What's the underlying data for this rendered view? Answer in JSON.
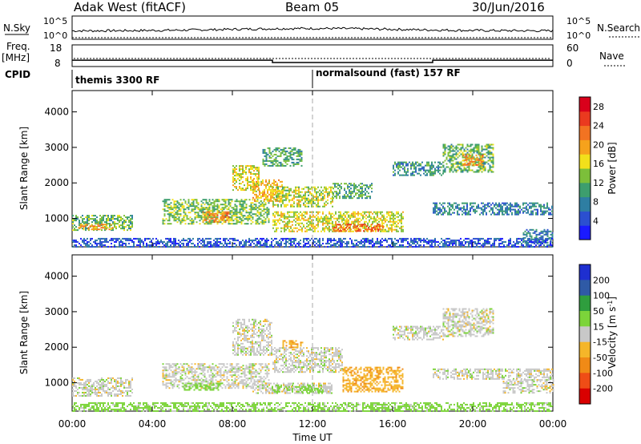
{
  "header": {
    "station": "Adak West (fitACF)",
    "beam": "Beam 05",
    "date": "30/Jun/2016"
  },
  "time_axis": {
    "title": "Time UT",
    "ticks": [
      "00:00",
      "04:00",
      "08:00",
      "12:00",
      "16:00",
      "20:00",
      "00:00"
    ],
    "range_hours": [
      0,
      24
    ]
  },
  "nsky_panel": {
    "left_label": "N.Sky",
    "right_label": "N.Search",
    "left_ticks": [
      "10^5",
      "10^0"
    ],
    "right_ticks": [
      "10^5",
      "10^0"
    ]
  },
  "freq_panel": {
    "left_label_1": "Freq.",
    "left_label_2": "[MHz]",
    "right_label": "Nave",
    "left_ticks": [
      "18",
      "8"
    ],
    "right_ticks": [
      "60",
      "0"
    ],
    "freq_segments": [
      {
        "start": 0,
        "end": 10,
        "mhz": 11.6
      },
      {
        "start": 10,
        "end": 18,
        "mhz": 10.3
      },
      {
        "start": 18,
        "end": 24,
        "mhz": 11.6
      }
    ]
  },
  "cpid": {
    "label": "CPID",
    "divider_hour": 12,
    "programs": [
      "themis 3300 RF",
      "normalsound (fast) 157 RF"
    ]
  },
  "chart_data": [
    {
      "type": "heatmap",
      "title": "",
      "xlabel": "Time UT",
      "ylabel": "Slant Range [km]",
      "ylim": [
        200,
        4600
      ],
      "y_ticks": [
        "1000",
        "2000",
        "3000",
        "4000"
      ],
      "colorbar": {
        "title": "Power [dB]",
        "ticks": [
          "4",
          "8",
          "12",
          "16",
          "20",
          "24",
          "28"
        ],
        "range": [
          0,
          30
        ]
      },
      "regions": [
        {
          "t0": 0.0,
          "t1": 3.0,
          "r0": 650,
          "r1": 1100,
          "level": 12
        },
        {
          "t0": 0.3,
          "t1": 2.0,
          "r0": 700,
          "r1": 850,
          "level": 20
        },
        {
          "t0": 4.5,
          "t1": 9.8,
          "r0": 850,
          "r1": 1550,
          "level": 13
        },
        {
          "t0": 6.5,
          "t1": 7.8,
          "r0": 900,
          "r1": 1200,
          "level": 21
        },
        {
          "t0": 8.0,
          "t1": 9.3,
          "r0": 1800,
          "r1": 2500,
          "level": 16
        },
        {
          "t0": 9.0,
          "t1": 10.5,
          "r0": 1500,
          "r1": 2100,
          "level": 18
        },
        {
          "t0": 10.0,
          "t1": 16.5,
          "r0": 650,
          "r1": 1200,
          "level": 16
        },
        {
          "t0": 13.0,
          "t1": 15.5,
          "r0": 650,
          "r1": 850,
          "level": 23
        },
        {
          "t0": 10.0,
          "t1": 13.0,
          "r0": 1350,
          "r1": 1900,
          "level": 15
        },
        {
          "t0": 13.0,
          "t1": 15.0,
          "r0": 1550,
          "r1": 2000,
          "level": 11
        },
        {
          "t0": 9.5,
          "t1": 11.5,
          "r0": 2500,
          "r1": 3000,
          "level": 11
        },
        {
          "t0": 16.0,
          "t1": 18.5,
          "r0": 2200,
          "r1": 2600,
          "level": 9
        },
        {
          "t0": 18.5,
          "t1": 21.0,
          "r0": 2300,
          "r1": 3100,
          "level": 12
        },
        {
          "t0": 19.5,
          "t1": 20.5,
          "r0": 2500,
          "r1": 2800,
          "level": 21
        },
        {
          "t0": 18.0,
          "t1": 24.0,
          "r0": 1100,
          "r1": 1450,
          "level": 8
        },
        {
          "t0": 22.5,
          "t1": 24.0,
          "r0": 300,
          "r1": 700,
          "level": 8
        },
        {
          "t0": 0.0,
          "t1": 24.0,
          "r0": 220,
          "r1": 450,
          "level": 5
        }
      ]
    },
    {
      "type": "heatmap",
      "title": "",
      "xlabel": "Time UT",
      "ylabel": "Slant Range [km]",
      "ylim": [
        200,
        4600
      ],
      "y_ticks": [
        "1000",
        "2000",
        "3000",
        "4000"
      ],
      "colorbar": {
        "title": "Velocity [m s^-1]",
        "ticks": [
          "200",
          "100",
          "50",
          "15",
          "-15",
          "-50",
          "-100",
          "-200"
        ],
        "range": [
          -250,
          250
        ]
      },
      "regions": [
        {
          "t0": 0.0,
          "t1": 3.0,
          "r0": 650,
          "r1": 1150,
          "level": 0
        },
        {
          "t0": 4.5,
          "t1": 9.8,
          "r0": 850,
          "r1": 1550,
          "level": 0
        },
        {
          "t0": 5.5,
          "t1": 7.5,
          "r0": 800,
          "r1": 1000,
          "level": 30
        },
        {
          "t0": 8.0,
          "t1": 10.0,
          "r0": 1800,
          "r1": 2800,
          "level": 0
        },
        {
          "t0": 10.0,
          "t1": 13.5,
          "r0": 1300,
          "r1": 2000,
          "level": 0
        },
        {
          "t0": 10.5,
          "t1": 11.5,
          "r0": 2000,
          "r1": 2200,
          "level": -40
        },
        {
          "t0": 9.0,
          "t1": 13.0,
          "r0": 700,
          "r1": 1000,
          "level": 0
        },
        {
          "t0": 10.0,
          "t1": 12.5,
          "r0": 750,
          "r1": 950,
          "level": 30
        },
        {
          "t0": 13.5,
          "t1": 16.5,
          "r0": 750,
          "r1": 1450,
          "level": -40
        },
        {
          "t0": 16.0,
          "t1": 18.5,
          "r0": 2200,
          "r1": 2600,
          "level": 0
        },
        {
          "t0": 18.5,
          "t1": 21.0,
          "r0": 2300,
          "r1": 3100,
          "level": 0
        },
        {
          "t0": 18.0,
          "t1": 24.0,
          "r0": 1100,
          "r1": 1400,
          "level": 0
        },
        {
          "t0": 21.5,
          "t1": 24.0,
          "r0": 700,
          "r1": 1100,
          "level": 0
        },
        {
          "t0": 0.0,
          "t1": 24.0,
          "r0": 220,
          "r1": 450,
          "level": 30
        }
      ]
    }
  ]
}
